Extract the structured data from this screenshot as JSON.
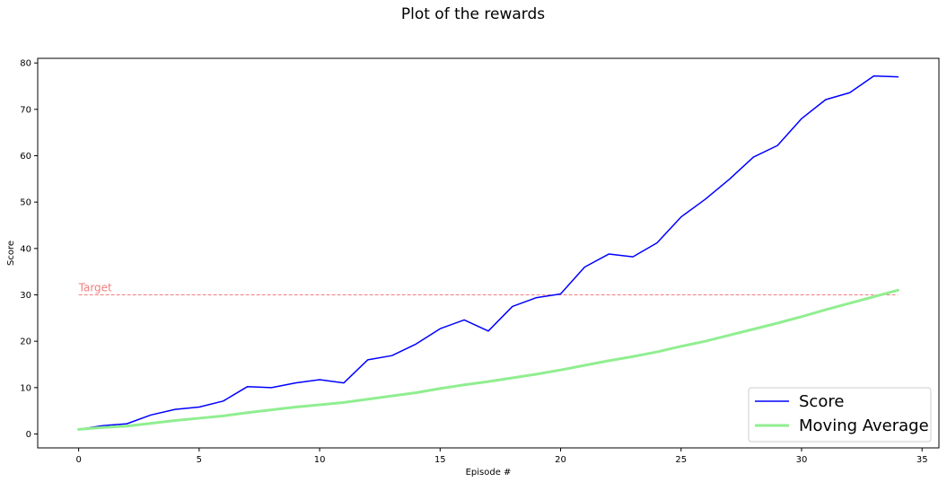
{
  "chart_data": {
    "type": "line",
    "title": "Plot of the rewards",
    "xlabel": "Episode #",
    "ylabel": "Score",
    "xlim": [
      -1.7,
      35.7
    ],
    "ylim": [
      -3,
      81
    ],
    "xticks": [
      0,
      5,
      10,
      15,
      20,
      25,
      30,
      35
    ],
    "yticks": [
      0,
      10,
      20,
      30,
      40,
      50,
      60,
      70,
      80
    ],
    "grid": false,
    "legend_position": "lower-right",
    "x": [
      0,
      1,
      2,
      3,
      4,
      5,
      6,
      7,
      8,
      9,
      10,
      11,
      12,
      13,
      14,
      15,
      16,
      17,
      18,
      19,
      20,
      21,
      22,
      23,
      24,
      25,
      26,
      27,
      28,
      29,
      30,
      31,
      32,
      33,
      34
    ],
    "series": [
      {
        "name": "Score",
        "color": "#0000ff",
        "values": [
          1.0,
          1.8,
          2.2,
          4.1,
          5.3,
          5.8,
          7.1,
          10.2,
          10.0,
          11.0,
          11.7,
          11.0,
          16.0,
          16.9,
          19.4,
          22.7,
          24.6,
          22.2,
          27.5,
          29.4,
          30.2,
          36.0,
          38.8,
          38.2,
          41.2,
          46.8,
          50.6,
          54.9,
          59.7,
          62.2,
          68.0,
          72.1,
          73.6,
          77.2,
          77.0
        ]
      },
      {
        "name": "Moving Average",
        "color": "#90ee90",
        "values": [
          1.0,
          1.4,
          1.7,
          2.3,
          2.9,
          3.4,
          3.9,
          4.6,
          5.2,
          5.8,
          6.3,
          6.8,
          7.5,
          8.2,
          8.9,
          9.8,
          10.6,
          11.3,
          12.1,
          12.9,
          13.8,
          14.8,
          15.8,
          16.7,
          17.7,
          18.9,
          20.0,
          21.3,
          22.6,
          23.9,
          25.3,
          26.8,
          28.2,
          29.6,
          31.0
        ]
      }
    ],
    "annotations": [
      {
        "text": "Target",
        "y": 30,
        "x_start": 0,
        "x_end": 34,
        "color": "#f08080",
        "style": "dashed"
      }
    ]
  }
}
